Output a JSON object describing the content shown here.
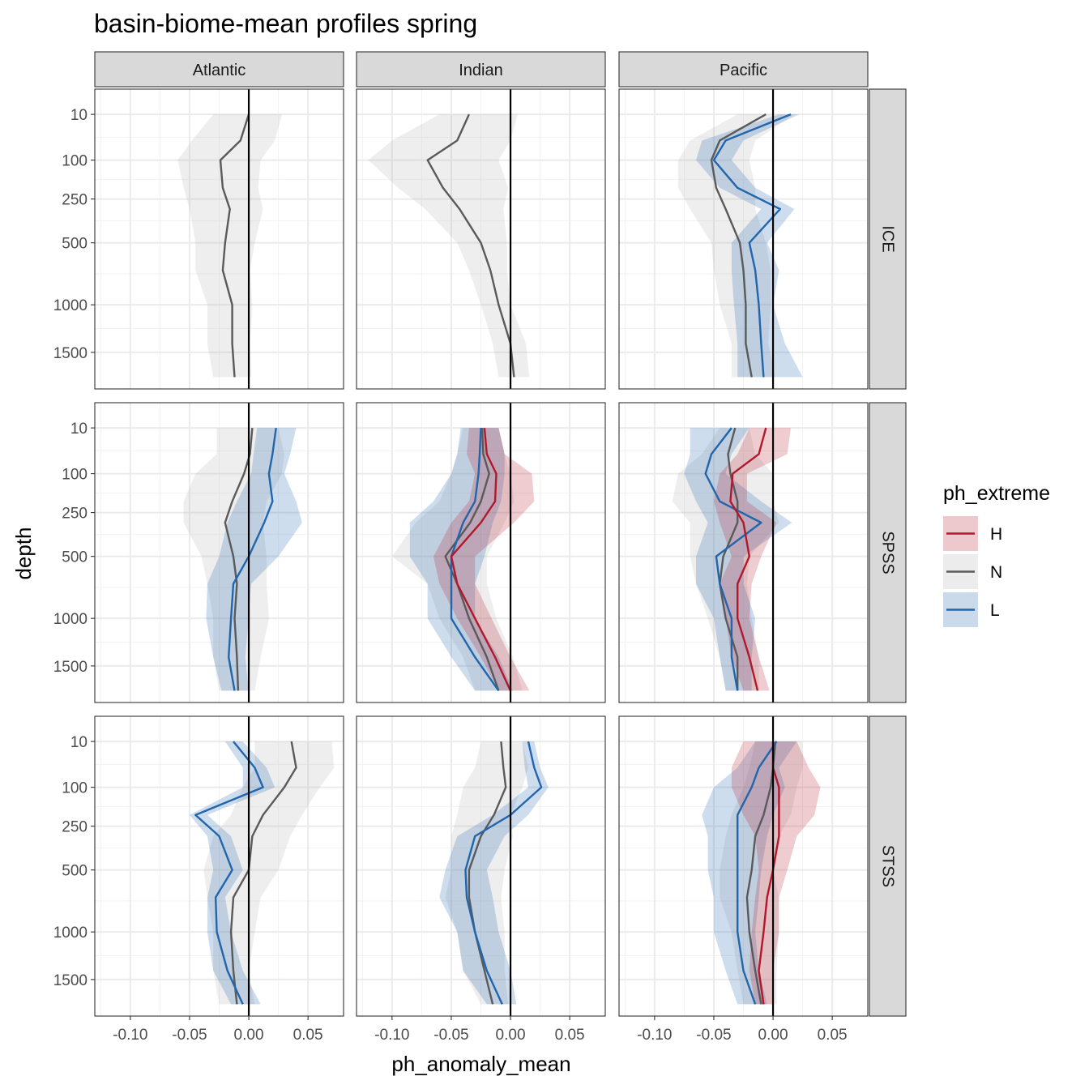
{
  "chart_data": {
    "type": "line",
    "title": "basin-biome-mean profiles spring",
    "xlabel": "ph_anomaly_mean",
    "ylabel": "depth",
    "x_ticks": [
      -0.1,
      -0.05,
      0.0,
      0.05
    ],
    "x_tick_labels": [
      "-0.10",
      "-0.05",
      "0.00",
      "0.05"
    ],
    "xlim": [
      -0.13,
      0.08
    ],
    "y_scale": "sqrt",
    "y_ticks": [
      10,
      100,
      250,
      500,
      1000,
      1500
    ],
    "y_tick_labels": [
      "10",
      "100",
      "250",
      "500",
      "1000",
      "1500"
    ],
    "ylim": [
      0,
      1900
    ],
    "y_reversed": true,
    "depths": [
      10,
      50,
      100,
      200,
      300,
      500,
      700,
      1000,
      1400,
      1800
    ],
    "basins": [
      "Atlantic",
      "Indian",
      "Pacific"
    ],
    "biomes": [
      "ICE",
      "SPSS",
      "STSS"
    ],
    "reference_line_x": 0,
    "legend": {
      "title": "ph_extreme",
      "position": "right",
      "entries": [
        {
          "key": "H",
          "label": "H",
          "color": "#b2182b"
        },
        {
          "key": "N",
          "label": "N",
          "color": "#5a5a5a"
        },
        {
          "key": "L",
          "label": "L",
          "color": "#2166ac"
        }
      ]
    },
    "panels": [
      {
        "basin": "Atlantic",
        "biome": "ICE",
        "series": [
          {
            "name": "N",
            "mean": [
              0.0,
              -0.007,
              -0.024,
              -0.022,
              -0.016,
              -0.02,
              -0.022,
              -0.014,
              -0.014,
              -0.012
            ],
            "lower": [
              -0.03,
              -0.048,
              -0.06,
              -0.055,
              -0.05,
              -0.045,
              -0.045,
              -0.035,
              -0.035,
              -0.03
            ],
            "upper": [
              0.028,
              0.022,
              0.01,
              0.008,
              0.012,
              0.005,
              0.001,
              0.003,
              0.001,
              0.002
            ]
          }
        ]
      },
      {
        "basin": "Indian",
        "biome": "ICE",
        "series": [
          {
            "name": "N",
            "mean": [
              -0.035,
              -0.045,
              -0.07,
              -0.057,
              -0.043,
              -0.025,
              -0.017,
              -0.01,
              0.0,
              0.003
            ],
            "lower": [
              -0.06,
              -0.1,
              -0.12,
              -0.095,
              -0.072,
              -0.045,
              -0.035,
              -0.025,
              -0.015,
              -0.01
            ],
            "upper": [
              0.006,
              0.0,
              -0.01,
              -0.002,
              -0.006,
              -0.003,
              -0.003,
              0.0,
              0.013,
              0.016
            ]
          }
        ]
      },
      {
        "basin": "Pacific",
        "biome": "ICE",
        "series": [
          {
            "name": "N",
            "mean": [
              -0.006,
              -0.045,
              -0.052,
              -0.048,
              -0.04,
              -0.028,
              -0.025,
              -0.023,
              -0.023,
              -0.018
            ],
            "lower": [
              -0.03,
              -0.07,
              -0.08,
              -0.08,
              -0.07,
              -0.052,
              -0.05,
              -0.045,
              -0.035,
              -0.035
            ],
            "upper": [
              0.018,
              -0.015,
              -0.02,
              -0.015,
              -0.015,
              -0.006,
              -0.002,
              -0.002,
              -0.004,
              0.002
            ]
          },
          {
            "name": "L",
            "mean": [
              0.015,
              -0.04,
              -0.05,
              -0.03,
              0.006,
              -0.02,
              -0.015,
              -0.012,
              -0.01,
              -0.008
            ],
            "lower": [
              0.005,
              -0.06,
              -0.065,
              -0.045,
              -0.01,
              -0.035,
              -0.035,
              -0.033,
              -0.03,
              -0.03
            ],
            "upper": [
              0.022,
              -0.025,
              -0.035,
              -0.015,
              0.018,
              -0.005,
              0.005,
              0.0,
              0.01,
              0.025
            ]
          }
        ]
      },
      {
        "basin": "Atlantic",
        "biome": "SPSS",
        "series": [
          {
            "name": "N",
            "mean": [
              0.003,
              0.001,
              -0.004,
              -0.014,
              -0.02,
              -0.013,
              -0.01,
              -0.012,
              -0.01,
              -0.009
            ],
            "lower": [
              -0.027,
              -0.027,
              -0.045,
              -0.055,
              -0.055,
              -0.04,
              -0.035,
              -0.03,
              -0.03,
              -0.025
            ],
            "upper": [
              0.025,
              0.03,
              0.028,
              0.015,
              0.012,
              0.015,
              0.015,
              0.017,
              0.01,
              0.005
            ]
          },
          {
            "name": "L",
            "mean": [
              0.023,
              0.02,
              0.017,
              0.02,
              0.013,
              0.0,
              -0.013,
              -0.015,
              -0.017,
              -0.012
            ],
            "lower": [
              0.007,
              0.004,
              0.002,
              -0.01,
              -0.018,
              -0.025,
              -0.035,
              -0.036,
              -0.03,
              -0.023
            ],
            "upper": [
              0.04,
              0.035,
              0.03,
              0.04,
              0.045,
              0.025,
              0.002,
              0.0,
              -0.003,
              0.0
            ]
          }
        ]
      },
      {
        "basin": "Indian",
        "biome": "SPSS",
        "series": [
          {
            "name": "H",
            "mean": [
              -0.022,
              -0.02,
              -0.012,
              -0.013,
              -0.025,
              -0.05,
              -0.045,
              -0.03,
              -0.013,
              0.0
            ],
            "lower": [
              -0.035,
              -0.037,
              -0.03,
              -0.035,
              -0.05,
              -0.065,
              -0.06,
              -0.045,
              -0.025,
              -0.01
            ],
            "upper": [
              -0.01,
              -0.005,
              0.018,
              0.02,
              0.003,
              -0.03,
              -0.03,
              -0.016,
              0.0,
              0.016
            ]
          },
          {
            "name": "N",
            "mean": [
              -0.024,
              -0.023,
              -0.018,
              -0.025,
              -0.034,
              -0.055,
              -0.045,
              -0.035,
              -0.02,
              -0.01
            ],
            "lower": [
              -0.04,
              -0.045,
              -0.05,
              -0.06,
              -0.08,
              -0.1,
              -0.07,
              -0.06,
              -0.04,
              -0.03
            ],
            "upper": [
              -0.01,
              -0.005,
              0.0,
              0.003,
              -0.005,
              -0.02,
              -0.02,
              -0.012,
              0.002,
              0.01
            ]
          },
          {
            "name": "L",
            "mean": [
              -0.025,
              -0.026,
              -0.027,
              -0.03,
              -0.04,
              -0.05,
              -0.05,
              -0.05,
              -0.03,
              -0.01
            ],
            "lower": [
              -0.042,
              -0.045,
              -0.05,
              -0.065,
              -0.085,
              -0.085,
              -0.07,
              -0.07,
              -0.05,
              -0.03
            ],
            "upper": [
              -0.01,
              -0.005,
              -0.005,
              -0.008,
              -0.015,
              -0.022,
              -0.03,
              -0.03,
              -0.01,
              0.002
            ]
          }
        ]
      },
      {
        "basin": "Pacific",
        "biome": "SPSS",
        "series": [
          {
            "name": "H",
            "mean": [
              -0.006,
              -0.012,
              -0.034,
              -0.036,
              -0.025,
              -0.02,
              -0.03,
              -0.03,
              -0.02,
              -0.013
            ],
            "lower": [
              -0.02,
              -0.03,
              -0.045,
              -0.05,
              -0.045,
              -0.035,
              -0.045,
              -0.04,
              -0.035,
              -0.025
            ],
            "upper": [
              0.015,
              0.012,
              -0.022,
              -0.022,
              0.003,
              -0.01,
              -0.018,
              -0.02,
              -0.012,
              -0.003
            ]
          },
          {
            "name": "N",
            "mean": [
              -0.032,
              -0.038,
              -0.036,
              -0.03,
              -0.03,
              -0.042,
              -0.045,
              -0.04,
              -0.03,
              -0.03
            ],
            "lower": [
              -0.045,
              -0.06,
              -0.08,
              -0.085,
              -0.07,
              -0.07,
              -0.065,
              -0.055,
              -0.045,
              -0.04
            ],
            "upper": [
              -0.02,
              -0.015,
              0.0,
              0.0,
              0.005,
              -0.02,
              -0.022,
              -0.018,
              -0.012,
              -0.012
            ]
          },
          {
            "name": "L",
            "mean": [
              -0.035,
              -0.052,
              -0.057,
              -0.045,
              -0.01,
              -0.048,
              -0.045,
              -0.035,
              -0.035,
              -0.03
            ],
            "lower": [
              -0.07,
              -0.07,
              -0.075,
              -0.065,
              -0.055,
              -0.065,
              -0.065,
              -0.05,
              -0.045,
              -0.04
            ],
            "upper": [
              -0.02,
              -0.035,
              -0.04,
              -0.01,
              0.016,
              -0.025,
              -0.025,
              -0.015,
              -0.018,
              -0.018
            ]
          }
        ]
      },
      {
        "basin": "Atlantic",
        "biome": "STSS",
        "series": [
          {
            "name": "N",
            "mean": [
              0.036,
              0.04,
              0.03,
              0.012,
              0.003,
              0.0,
              -0.013,
              -0.015,
              -0.013,
              -0.01
            ],
            "lower": [
              0.005,
              0.005,
              -0.005,
              -0.015,
              -0.03,
              -0.038,
              -0.035,
              -0.03,
              -0.03,
              -0.025
            ],
            "upper": [
              0.07,
              0.072,
              0.06,
              0.045,
              0.035,
              0.025,
              0.01,
              0.005,
              0.0,
              0.005
            ]
          },
          {
            "name": "L",
            "mean": [
              -0.013,
              0.005,
              0.012,
              -0.045,
              -0.025,
              -0.014,
              -0.028,
              -0.027,
              -0.018,
              -0.005
            ],
            "lower": [
              -0.02,
              -0.005,
              -0.005,
              -0.05,
              -0.035,
              -0.03,
              -0.035,
              -0.035,
              -0.03,
              -0.015
            ],
            "upper": [
              -0.005,
              0.015,
              0.022,
              -0.035,
              -0.015,
              -0.005,
              -0.02,
              -0.015,
              -0.005,
              0.01
            ]
          }
        ]
      },
      {
        "basin": "Indian",
        "biome": "STSS",
        "series": [
          {
            "name": "N",
            "mean": [
              -0.008,
              -0.006,
              -0.004,
              -0.014,
              -0.025,
              -0.035,
              -0.035,
              -0.03,
              -0.022,
              -0.015
            ],
            "lower": [
              -0.025,
              -0.03,
              -0.04,
              -0.045,
              -0.05,
              -0.05,
              -0.055,
              -0.045,
              -0.04,
              -0.025
            ],
            "upper": [
              0.01,
              0.015,
              0.01,
              0.0,
              0.002,
              -0.005,
              -0.008,
              -0.005,
              -0.005,
              -0.002
            ]
          },
          {
            "name": "L",
            "mean": [
              0.015,
              0.02,
              0.026,
              0.0,
              -0.03,
              -0.038,
              -0.037,
              -0.03,
              -0.02,
              -0.007
            ],
            "lower": [
              0.01,
              0.012,
              0.015,
              -0.015,
              -0.045,
              -0.055,
              -0.06,
              -0.045,
              -0.04,
              -0.02
            ],
            "upper": [
              0.02,
              0.025,
              0.032,
              0.015,
              -0.005,
              -0.02,
              -0.015,
              -0.01,
              0.0,
              0.005
            ]
          }
        ]
      },
      {
        "basin": "Pacific",
        "biome": "STSS",
        "series": [
          {
            "name": "H",
            "mean": [
              0.0,
              0.0,
              0.005,
              0.005,
              0.005,
              0.0,
              -0.005,
              -0.008,
              -0.012,
              -0.008
            ],
            "lower": [
              -0.025,
              -0.035,
              -0.035,
              -0.025,
              -0.015,
              -0.012,
              -0.015,
              -0.018,
              -0.02,
              -0.015
            ],
            "upper": [
              0.02,
              0.03,
              0.04,
              0.035,
              0.02,
              0.012,
              0.005,
              0.005,
              0.0,
              0.0
            ]
          },
          {
            "name": "N",
            "mean": [
              0.002,
              0.0,
              -0.002,
              -0.008,
              -0.015,
              -0.018,
              -0.022,
              -0.02,
              -0.015,
              -0.01
            ],
            "lower": [
              -0.015,
              -0.02,
              -0.025,
              -0.035,
              -0.04,
              -0.045,
              -0.045,
              -0.035,
              -0.03,
              -0.025
            ],
            "upper": [
              0.025,
              0.025,
              0.02,
              0.015,
              0.005,
              0.0,
              0.005,
              0.005,
              0.003,
              0.003
            ]
          },
          {
            "name": "L",
            "mean": [
              0.003,
              -0.012,
              -0.018,
              -0.03,
              -0.03,
              -0.03,
              -0.03,
              -0.03,
              -0.025,
              -0.015
            ],
            "lower": [
              -0.015,
              -0.03,
              -0.05,
              -0.06,
              -0.055,
              -0.055,
              -0.05,
              -0.05,
              -0.04,
              -0.03
            ],
            "upper": [
              0.02,
              0.005,
              0.01,
              0.0,
              -0.005,
              -0.01,
              -0.012,
              -0.015,
              -0.012,
              -0.005
            ]
          }
        ]
      }
    ]
  }
}
